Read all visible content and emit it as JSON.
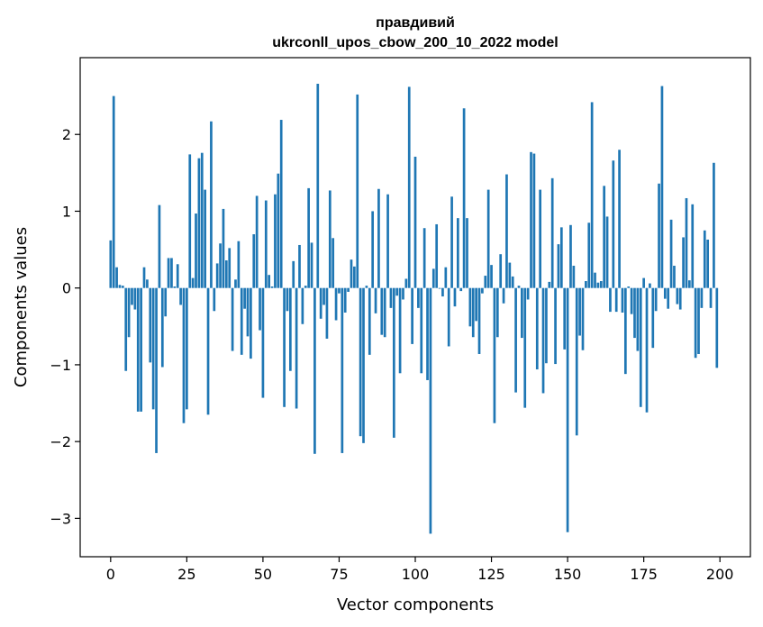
{
  "chart_data": {
    "type": "bar",
    "title_line1": "правдивий",
    "title_line2": "ukrconll_upos_cbow_200_10_2022 model",
    "xlabel": "Vector components",
    "ylabel": "Components values",
    "xlim": [
      -10,
      210
    ],
    "ylim": [
      -3.5,
      3.0
    ],
    "xticks": [
      0,
      25,
      50,
      75,
      100,
      125,
      150,
      175,
      200
    ],
    "xtick_labels": [
      "0",
      "25",
      "50",
      "75",
      "100",
      "125",
      "150",
      "175",
      "200"
    ],
    "yticks": [
      -3,
      -2,
      -1,
      0,
      1,
      2
    ],
    "ytick_labels": [
      "−3",
      "−2",
      "−1",
      "0",
      "1",
      "2"
    ],
    "bar_color": "#1f77b4",
    "values": [
      0.62,
      2.5,
      0.27,
      0.04,
      0.03,
      -1.08,
      -0.64,
      -0.22,
      -0.28,
      -1.61,
      -1.61,
      0.27,
      0.11,
      -0.97,
      -1.58,
      -2.15,
      1.08,
      -1.03,
      -0.37,
      0.39,
      0.39,
      0.02,
      0.31,
      -0.22,
      -1.76,
      -1.58,
      1.74,
      0.13,
      0.97,
      1.69,
      1.76,
      1.28,
      -1.65,
      2.17,
      -0.3,
      0.32,
      0.58,
      1.03,
      0.36,
      0.52,
      -0.82,
      0.11,
      0.61,
      -0.87,
      -0.27,
      -0.63,
      -0.92,
      0.7,
      1.2,
      -0.55,
      -1.43,
      1.14,
      0.17,
      0.02,
      1.22,
      1.49,
      2.19,
      -1.55,
      -0.3,
      -1.08,
      0.35,
      -1.57,
      0.56,
      -0.47,
      0.03,
      1.3,
      0.59,
      -2.16,
      2.66,
      -0.4,
      -0.22,
      -0.66,
      1.27,
      0.65,
      -0.42,
      -0.07,
      -2.15,
      -0.32,
      -0.05,
      0.37,
      0.28,
      2.52,
      -1.93,
      -2.02,
      0.03,
      -0.87,
      1.0,
      -0.33,
      1.29,
      -0.61,
      -0.64,
      1.22,
      -0.26,
      -1.95,
      -0.1,
      -1.11,
      -0.15,
      0.12,
      2.62,
      -0.73,
      1.71,
      -0.26,
      -1.11,
      0.78,
      -1.2,
      -3.2,
      0.25,
      0.83,
      -0.01,
      -0.11,
      0.27,
      -0.76,
      1.19,
      -0.24,
      0.91,
      -0.04,
      2.34,
      0.91,
      -0.5,
      -0.64,
      -0.43,
      -0.86,
      -0.07,
      0.16,
      1.28,
      0.3,
      -1.76,
      -0.64,
      0.44,
      -0.2,
      1.48,
      0.33,
      0.15,
      -1.36,
      0.03,
      -0.65,
      -1.56,
      -0.15,
      1.77,
      1.75,
      -1.06,
      1.28,
      -1.37,
      -0.98,
      0.08,
      1.43,
      -0.99,
      0.57,
      0.79,
      -0.8,
      -3.18,
      0.82,
      0.29,
      -1.92,
      -0.62,
      -0.81,
      0.09,
      0.85,
      2.42,
      0.2,
      0.07,
      0.09,
      1.33,
      0.93,
      -0.31,
      1.66,
      -0.31,
      1.8,
      -0.32,
      -1.12,
      0.02,
      -0.34,
      -0.65,
      -0.82,
      -1.55,
      0.13,
      -1.62,
      0.06,
      -0.78,
      -0.3,
      1.36,
      2.63,
      -0.14,
      -0.27,
      0.89,
      0.29,
      -0.21,
      -0.28,
      0.66,
      1.17,
      0.1,
      1.09,
      -0.91,
      -0.86,
      -0.26,
      0.75,
      0.63,
      -0.26,
      1.63,
      -1.04
    ]
  }
}
